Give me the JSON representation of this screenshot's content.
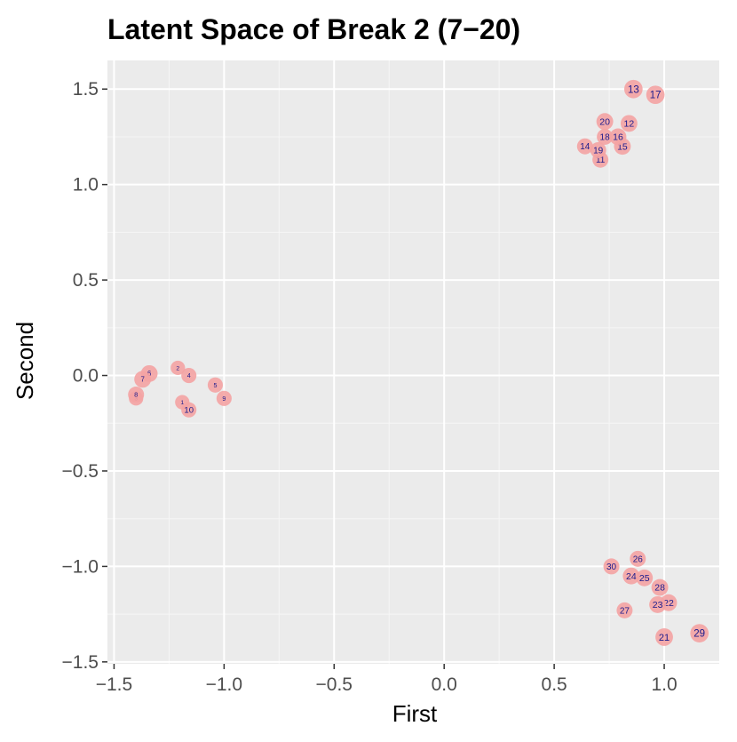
{
  "chart_data": {
    "type": "scatter",
    "title": "Latent Space of Break 2 (7−20)",
    "xlabel": "First",
    "ylabel": "Second",
    "xlim": [
      -1.53,
      1.25
    ],
    "ylim": [
      -1.51,
      1.65
    ],
    "x_ticks": [
      -1.5,
      -1.0,
      -0.5,
      0.0,
      0.5,
      1.0
    ],
    "x_tick_labels": [
      "−1.5",
      "−1.0",
      "−0.5",
      "0.0",
      "0.5",
      "1.0"
    ],
    "y_ticks": [
      -1.5,
      -1.0,
      -0.5,
      0.0,
      0.5,
      1.0,
      1.5
    ],
    "y_tick_labels": [
      "−1.5",
      "−1.0",
      "−0.5",
      "0.0",
      "0.5",
      "1.0",
      "1.5"
    ],
    "grid": true,
    "colors": {
      "panel": "#ebebeb",
      "grid_major": "#ffffff",
      "grid_minor": "#f6f6f6",
      "point": "#f4a3a3",
      "label": "#1a1a8c"
    },
    "points": [
      {
        "id": "1",
        "x": -1.19,
        "y": -0.14,
        "size": 0.9
      },
      {
        "id": "2",
        "x": -1.21,
        "y": 0.04,
        "size": 0.9
      },
      {
        "id": "3",
        "x": -1.4,
        "y": -0.12,
        "size": 0.9
      },
      {
        "id": "4",
        "x": -1.16,
        "y": 0.0,
        "size": 0.95
      },
      {
        "id": "5",
        "x": -1.04,
        "y": -0.05,
        "size": 0.95
      },
      {
        "id": "6",
        "x": -1.34,
        "y": 0.01,
        "size": 1.05
      },
      {
        "id": "7",
        "x": -1.37,
        "y": -0.02,
        "size": 1.05
      },
      {
        "id": "8",
        "x": -1.4,
        "y": -0.1,
        "size": 1.0
      },
      {
        "id": "9",
        "x": -1.0,
        "y": -0.12,
        "size": 0.95
      },
      {
        "id": "10",
        "x": -1.16,
        "y": -0.18,
        "size": 0.95
      },
      {
        "id": "11",
        "x": 0.71,
        "y": 1.13,
        "size": 1.0
      },
      {
        "id": "12",
        "x": 0.84,
        "y": 1.32,
        "size": 1.05
      },
      {
        "id": "13",
        "x": 0.86,
        "y": 1.5,
        "size": 1.15
      },
      {
        "id": "14",
        "x": 0.64,
        "y": 1.2,
        "size": 1.0
      },
      {
        "id": "15",
        "x": 0.81,
        "y": 1.2,
        "size": 1.05
      },
      {
        "id": "16",
        "x": 0.79,
        "y": 1.25,
        "size": 1.05
      },
      {
        "id": "17",
        "x": 0.96,
        "y": 1.47,
        "size": 1.15
      },
      {
        "id": "18",
        "x": 0.73,
        "y": 1.25,
        "size": 1.0
      },
      {
        "id": "19",
        "x": 0.7,
        "y": 1.18,
        "size": 1.0
      },
      {
        "id": "20",
        "x": 0.73,
        "y": 1.33,
        "size": 1.05
      },
      {
        "id": "21",
        "x": 1.0,
        "y": -1.37,
        "size": 1.1
      },
      {
        "id": "22",
        "x": 1.02,
        "y": -1.19,
        "size": 1.05
      },
      {
        "id": "23",
        "x": 0.97,
        "y": -1.2,
        "size": 1.05
      },
      {
        "id": "24",
        "x": 0.85,
        "y": -1.05,
        "size": 1.05
      },
      {
        "id": "25",
        "x": 0.91,
        "y": -1.06,
        "size": 1.05
      },
      {
        "id": "26",
        "x": 0.88,
        "y": -0.96,
        "size": 1.0
      },
      {
        "id": "27",
        "x": 0.82,
        "y": -1.23,
        "size": 1.0
      },
      {
        "id": "28",
        "x": 0.98,
        "y": -1.11,
        "size": 1.05
      },
      {
        "id": "29",
        "x": 1.16,
        "y": -1.35,
        "size": 1.15
      },
      {
        "id": "30",
        "x": 0.76,
        "y": -1.0,
        "size": 1.0
      }
    ]
  }
}
